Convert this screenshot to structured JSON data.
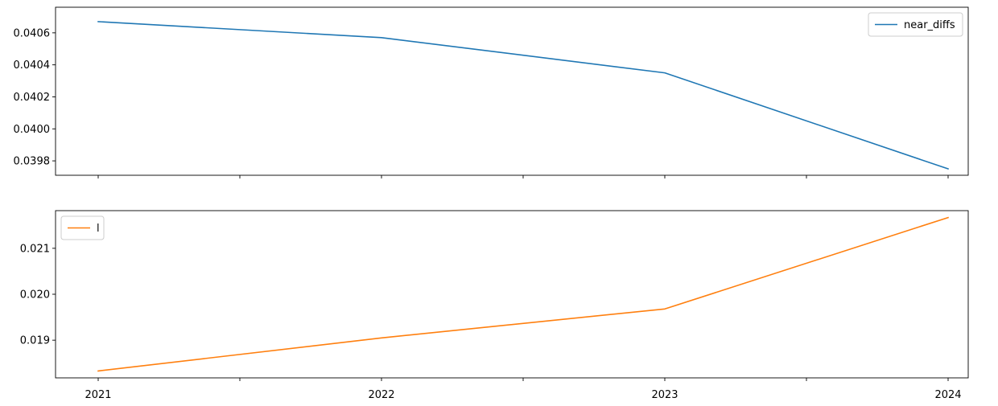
{
  "chart_data": [
    {
      "type": "line",
      "x": [
        "2021",
        "2022",
        "2023",
        "2024"
      ],
      "series": [
        {
          "name": "near_diffs",
          "values": [
            0.04067,
            0.04057,
            0.04035,
            0.03975
          ],
          "color": "#1f77b4"
        }
      ],
      "ylim": [
        0.03971,
        0.04076
      ],
      "yticks": [
        0.0398,
        0.04,
        0.0402,
        0.0404,
        0.0406
      ],
      "ytick_labels": [
        "0.0398",
        "0.0400",
        "0.0402",
        "0.0404",
        "0.0406"
      ],
      "xticks": [
        "2021",
        "2021.5",
        "2022",
        "2022.5",
        "2023",
        "2023.5",
        "2024"
      ],
      "xtick_labels": [],
      "legend_position": "upper right",
      "grid": false
    },
    {
      "type": "line",
      "x": [
        "2021",
        "2022",
        "2023",
        "2024"
      ],
      "series": [
        {
          "name": "l",
          "values": [
            0.01833,
            0.01905,
            0.01968,
            0.02167
          ],
          "color": "#ff7f0e"
        }
      ],
      "ylim": [
        0.01818,
        0.02182
      ],
      "yticks": [
        0.019,
        0.02,
        0.021
      ],
      "ytick_labels": [
        "0.019",
        "0.020",
        "0.021"
      ],
      "xticks": [
        "2021",
        "2021.5",
        "2022",
        "2022.5",
        "2023",
        "2023.5",
        "2024"
      ],
      "xtick_labels": [
        "2021",
        "",
        "2022",
        "",
        "2023",
        "",
        "2024"
      ],
      "legend_position": "upper left",
      "grid": false
    }
  ]
}
